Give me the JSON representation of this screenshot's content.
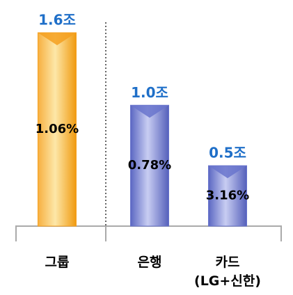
{
  "chart_data": {
    "type": "bar",
    "categories": [
      "그룹",
      "은행",
      "카드\n(LG+신한)"
    ],
    "values": [
      1.6,
      1.0,
      0.5
    ],
    "value_labels": [
      "1.6조",
      "1.0조",
      "0.5조"
    ],
    "inner_labels": [
      "1.06%",
      "0.78%",
      "3.16%"
    ],
    "colors": [
      "#f5a020",
      "#6874cc",
      "#6874cc"
    ]
  }
}
